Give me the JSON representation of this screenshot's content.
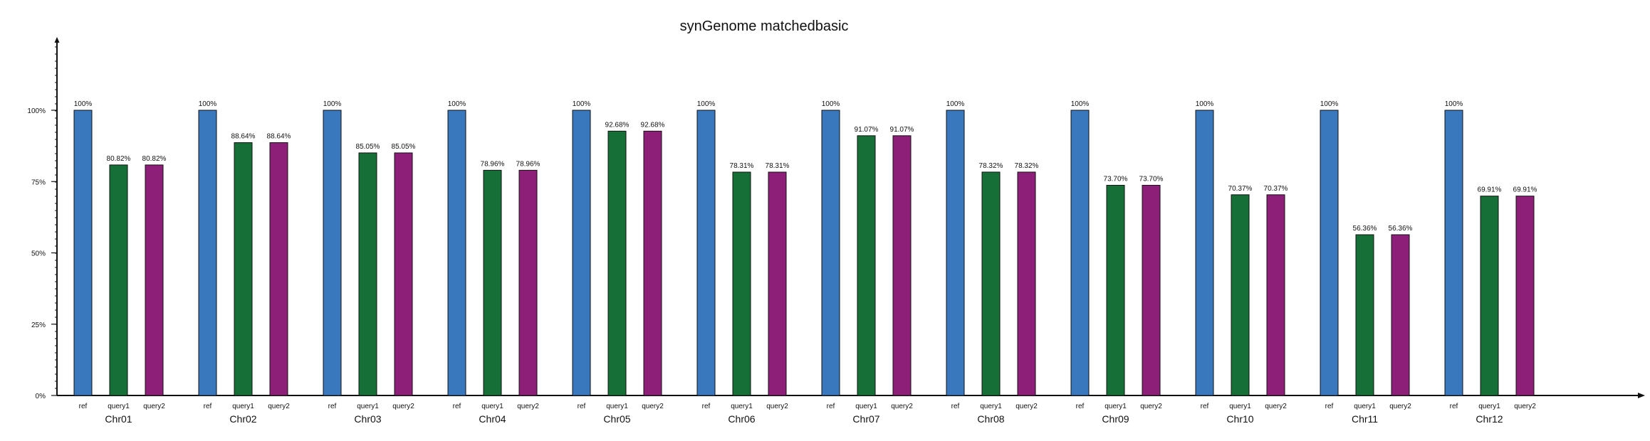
{
  "chart_data": {
    "type": "bar",
    "title": "synGenome matchedbasic",
    "xlabel": "",
    "ylabel": "",
    "ylim": [
      0,
      1.0
    ],
    "y_ticks": [
      {
        "value": 0,
        "label": "0%"
      },
      {
        "value": 0.25,
        "label": "25%"
      },
      {
        "value": 0.5,
        "label": "50%"
      },
      {
        "value": 0.75,
        "label": "75%"
      },
      {
        "value": 1.0,
        "label": "100%"
      }
    ],
    "grid": false,
    "legend": "none",
    "categories": [
      "Chr01",
      "Chr02",
      "Chr03",
      "Chr04",
      "Chr05",
      "Chr06",
      "Chr07",
      "Chr08",
      "Chr09",
      "Chr10",
      "Chr11",
      "Chr12"
    ],
    "series": [
      {
        "name": "ref",
        "color": "#3a78bd",
        "values": [
          1.0,
          1.0,
          1.0,
          1.0,
          1.0,
          1.0,
          1.0,
          1.0,
          1.0,
          1.0,
          1.0,
          1.0
        ],
        "labels": [
          "100%",
          "100%",
          "100%",
          "100%",
          "100%",
          "100%",
          "100%",
          "100%",
          "100%",
          "100%",
          "100%",
          "100%"
        ]
      },
      {
        "name": "query1",
        "color": "#166f36",
        "values": [
          0.8082,
          0.8864,
          0.8505,
          0.7896,
          0.9268,
          0.7831,
          0.9107,
          0.7832,
          0.737,
          0.7037,
          0.5636,
          0.6991
        ],
        "labels": [
          "80.82%",
          "88.64%",
          "85.05%",
          "78.96%",
          "92.68%",
          "78.31%",
          "91.07%",
          "78.32%",
          "73.70%",
          "70.37%",
          "56.36%",
          "69.91%"
        ]
      },
      {
        "name": "query2",
        "color": "#8e1f78",
        "values": [
          0.8082,
          0.8864,
          0.8505,
          0.7896,
          0.9268,
          0.7831,
          0.9107,
          0.7832,
          0.737,
          0.7037,
          0.5636,
          0.6991
        ],
        "labels": [
          "80.82%",
          "88.64%",
          "85.05%",
          "78.96%",
          "92.68%",
          "78.31%",
          "91.07%",
          "78.32%",
          "73.70%",
          "70.37%",
          "56.36%",
          "69.91%"
        ]
      }
    ]
  }
}
